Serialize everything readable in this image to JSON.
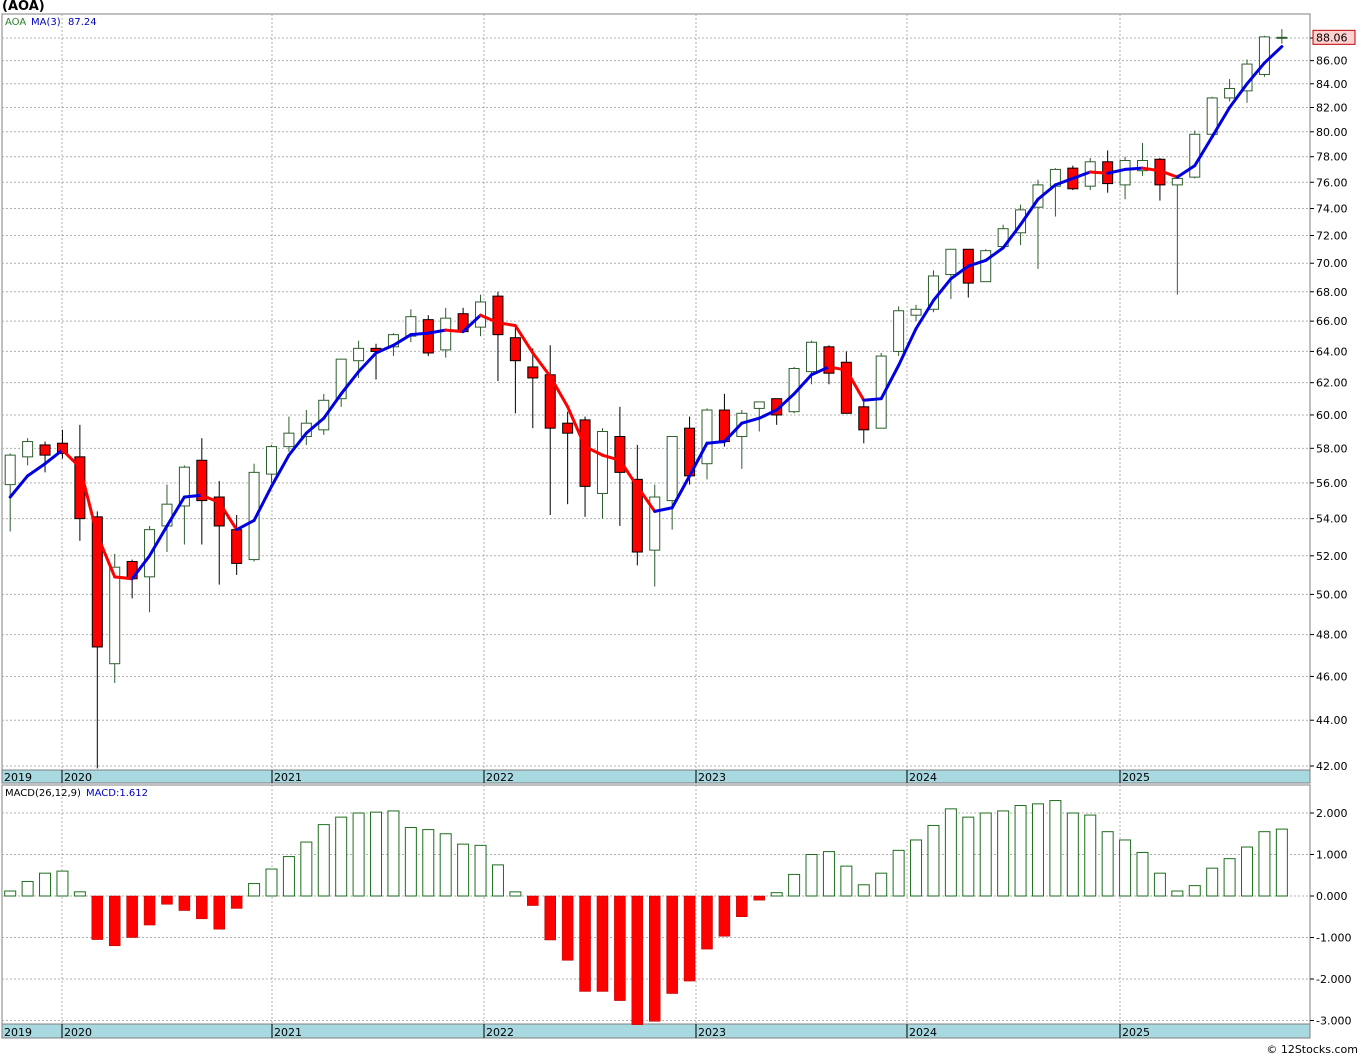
{
  "header": {
    "symbol": "(AOA)"
  },
  "watermark": "© 12Stocks.com",
  "price_panel": {
    "legend_symbol": "AOA",
    "legend_ma_label": "MA(3)",
    "legend_ma_value": "87.24",
    "last_price_label": "88.06",
    "y_ticks": [
      "42.00",
      "44.00",
      "46.00",
      "48.00",
      "50.00",
      "52.00",
      "54.00",
      "56.00",
      "58.00",
      "60.00",
      "62.00",
      "64.00",
      "66.00",
      "68.00",
      "70.00",
      "72.00",
      "74.00",
      "76.00",
      "78.00",
      "80.00",
      "82.00",
      "84.00",
      "86.00",
      "88.00"
    ],
    "year_labels": [
      "2019",
      "2020",
      "2021",
      "2022",
      "2023",
      "2024",
      "2025"
    ]
  },
  "macd_panel": {
    "legend_label": "MACD(26,12,9)",
    "legend_value": "MACD:1.612",
    "y_ticks": [
      "2.000",
      "1.000",
      "0.000",
      "-1.000",
      "-2.000",
      "-3.000"
    ],
    "year_labels": [
      "2019",
      "2020",
      "2021",
      "2022",
      "2023",
      "2024",
      "2025"
    ]
  },
  "colors": {
    "up_candle_fill": "#ffffff",
    "up_candle_border": "#2e5e2e",
    "down_candle_fill": "#ff0000",
    "ma_rising": "#0000e0",
    "ma_falling": "#ff0000",
    "macd_positive_border": "#1e6e1e",
    "macd_negative_fill": "#ff0000",
    "axis_band": "#a8d8e0",
    "grid": "#b0b0b0",
    "last_price_box": "#ffd0d0"
  },
  "chart_data": [
    {
      "type": "candlestick",
      "title": "(AOA)",
      "timeframe": "monthly",
      "x_start": "2019-11",
      "ylim": [
        41.7,
        89.5
      ],
      "y_scale": "log",
      "ohlc": [
        [
          55.9,
          57.7,
          53.3,
          57.6
        ],
        [
          57.5,
          58.6,
          57.0,
          58.4
        ],
        [
          58.2,
          58.4,
          56.6,
          57.6
        ],
        [
          58.3,
          59.1,
          57.4,
          57.7
        ],
        [
          57.5,
          59.4,
          52.8,
          54.0
        ],
        [
          54.1,
          54.4,
          41.9,
          47.4
        ],
        [
          46.6,
          52.1,
          45.7,
          51.4
        ],
        [
          51.7,
          51.8,
          49.8,
          50.8
        ],
        [
          50.9,
          53.6,
          49.1,
          53.4
        ],
        [
          53.6,
          55.9,
          52.2,
          54.8
        ],
        [
          54.7,
          57.0,
          52.6,
          56.9
        ],
        [
          57.3,
          58.6,
          52.6,
          55.0
        ],
        [
          55.2,
          56.1,
          50.5,
          53.6
        ],
        [
          53.4,
          54.2,
          51.0,
          51.6
        ],
        [
          51.8,
          57.1,
          51.7,
          56.6
        ],
        [
          56.5,
          58.2,
          56.0,
          58.1
        ],
        [
          58.1,
          59.9,
          57.8,
          58.9
        ],
        [
          58.7,
          60.3,
          58.2,
          59.5
        ],
        [
          59.1,
          61.3,
          58.8,
          60.9
        ],
        [
          61.0,
          63.5,
          60.5,
          63.5
        ],
        [
          63.4,
          64.7,
          62.3,
          64.2
        ],
        [
          64.2,
          64.5,
          62.2,
          64.0
        ],
        [
          64.3,
          65.2,
          63.7,
          65.1
        ],
        [
          65.0,
          66.8,
          64.6,
          66.3
        ],
        [
          66.1,
          66.4,
          63.7,
          63.9
        ],
        [
          64.1,
          66.9,
          63.6,
          66.2
        ],
        [
          66.5,
          66.9,
          65.3,
          65.3
        ],
        [
          65.6,
          67.8,
          65.0,
          67.3
        ],
        [
          67.7,
          68.0,
          62.1,
          65.1
        ],
        [
          64.9,
          65.6,
          60.1,
          63.4
        ],
        [
          63.0,
          64.2,
          59.2,
          62.3
        ],
        [
          62.5,
          64.4,
          54.2,
          59.2
        ],
        [
          59.5,
          60.2,
          54.8,
          58.9
        ],
        [
          59.7,
          59.9,
          54.1,
          55.8
        ],
        [
          55.4,
          59.2,
          54.0,
          59.0
        ],
        [
          58.7,
          60.5,
          53.6,
          56.6
        ],
        [
          56.2,
          58.2,
          51.5,
          52.2
        ],
        [
          52.3,
          55.9,
          50.4,
          55.2
        ],
        [
          55.0,
          58.7,
          53.4,
          58.7
        ],
        [
          59.2,
          59.9,
          55.9,
          56.4
        ],
        [
          57.1,
          60.4,
          56.2,
          60.3
        ],
        [
          60.3,
          61.3,
          58.1,
          58.4
        ],
        [
          58.7,
          60.3,
          56.8,
          60.1
        ],
        [
          60.4,
          60.8,
          59.0,
          60.8
        ],
        [
          61.0,
          61.0,
          59.4,
          60.0
        ],
        [
          60.2,
          63.0,
          60.1,
          62.9
        ],
        [
          62.7,
          64.7,
          61.9,
          64.6
        ],
        [
          64.3,
          64.4,
          61.9,
          62.6
        ],
        [
          63.3,
          64.0,
          60.2,
          60.1
        ],
        [
          60.5,
          60.8,
          58.3,
          59.1
        ],
        [
          59.2,
          63.9,
          59.2,
          63.7
        ],
        [
          64.0,
          67.0,
          63.7,
          66.7
        ],
        [
          66.4,
          67.1,
          66.0,
          66.8
        ],
        [
          66.8,
          69.5,
          66.6,
          69.1
        ],
        [
          69.2,
          70.8,
          67.5,
          71.0
        ],
        [
          71.0,
          71.0,
          67.6,
          68.6
        ],
        [
          68.7,
          71.0,
          68.7,
          70.9
        ],
        [
          71.2,
          72.8,
          71.0,
          72.5
        ],
        [
          72.2,
          74.3,
          71.3,
          73.9
        ],
        [
          74.1,
          76.2,
          69.6,
          75.8
        ],
        [
          75.7,
          77.1,
          73.4,
          77.0
        ],
        [
          77.1,
          77.3,
          75.4,
          75.5
        ],
        [
          75.7,
          77.9,
          75.4,
          77.6
        ],
        [
          77.6,
          78.5,
          75.2,
          75.9
        ],
        [
          75.8,
          78.0,
          74.7,
          77.7
        ],
        [
          76.9,
          79.1,
          76.5,
          77.7
        ],
        [
          77.8,
          77.9,
          74.6,
          75.8
        ],
        [
          75.8,
          76.6,
          67.8,
          76.3
        ],
        [
          76.4,
          80.1,
          76.3,
          79.8
        ],
        [
          79.8,
          82.9,
          79.8,
          82.8
        ],
        [
          82.8,
          84.4,
          82.5,
          83.6
        ],
        [
          83.4,
          86.1,
          82.4,
          85.7
        ],
        [
          84.8,
          88.2,
          84.6,
          88.1
        ],
        [
          88.06,
          88.8,
          87.5,
          88.06
        ]
      ],
      "ma3": [
        55.2,
        56.4,
        57.1,
        57.9,
        56.9,
        53.1,
        50.9,
        50.8,
        52.0,
        53.6,
        55.2,
        55.3,
        54.9,
        53.4,
        53.9,
        55.8,
        57.6,
        58.9,
        59.8,
        61.3,
        62.7,
        63.9,
        64.4,
        65.1,
        65.2,
        65.4,
        65.3,
        66.4,
        65.9,
        65.7,
        63.9,
        62.4,
        60.5,
        58.1,
        57.6,
        57.3,
        55.8,
        54.4,
        54.6,
        56.4,
        58.3,
        58.4,
        59.5,
        59.8,
        60.3,
        61.3,
        62.5,
        63.0,
        62.8,
        60.9,
        61.0,
        63.1,
        65.5,
        67.4,
        68.9,
        69.8,
        70.2,
        71.1,
        72.8,
        74.7,
        75.8,
        76.3,
        76.8,
        76.7,
        77.0,
        77.1,
        76.9,
        76.4,
        77.3,
        79.6,
        82.0,
        84.0,
        85.8,
        87.24
      ],
      "series": [
        {
          "name": "MA(3)",
          "value_label": "87.24"
        }
      ]
    },
    {
      "type": "bar",
      "title": "MACD(26,12,9)",
      "ylim": [
        -3.1,
        2.55
      ],
      "values": [
        0.12,
        0.35,
        0.55,
        0.6,
        0.1,
        -1.05,
        -1.2,
        -1.0,
        -0.7,
        -0.2,
        -0.35,
        -0.55,
        -0.8,
        -0.3,
        0.3,
        0.65,
        0.95,
        1.3,
        1.72,
        1.9,
        2.0,
        2.02,
        2.05,
        1.65,
        1.6,
        1.5,
        1.25,
        1.22,
        0.75,
        0.1,
        -0.23,
        -1.06,
        -1.55,
        -2.3,
        -2.3,
        -2.52,
        -3.1,
        -3.02,
        -2.35,
        -2.05,
        -1.28,
        -0.97,
        -0.5,
        -0.1,
        0.08,
        0.52,
        1.0,
        1.07,
        0.72,
        0.27,
        0.55,
        1.1,
        1.35,
        1.7,
        2.1,
        1.9,
        2.0,
        2.05,
        2.18,
        2.22,
        2.3,
        2.0,
        1.95,
        1.55,
        1.35,
        1.05,
        0.55,
        0.12,
        0.25,
        0.67,
        0.9,
        1.18,
        1.55,
        1.612
      ]
    }
  ]
}
